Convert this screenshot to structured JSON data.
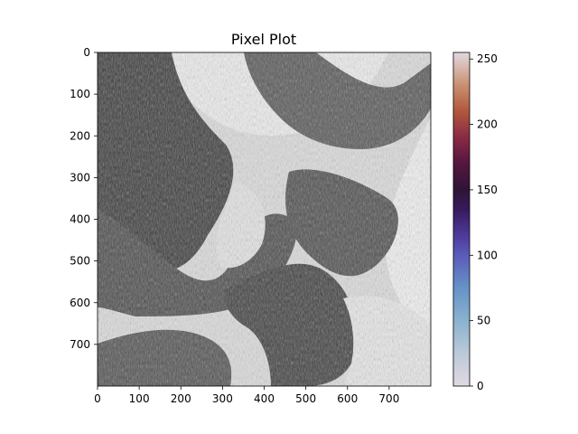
{
  "chart_data": {
    "type": "heatmap",
    "title": "Pixel Plot",
    "image": {
      "width": 800,
      "height": 800,
      "content": "grayscale image of flowing, folded fabric-like layers with dark moiré-textured bands over light gray/white background"
    },
    "x_axis": {
      "range": [
        0,
        800
      ],
      "ticks": [
        0,
        100,
        200,
        300,
        400,
        500,
        600,
        700
      ],
      "tick_labels": [
        "0",
        "100",
        "200",
        "300",
        "400",
        "500",
        "600",
        "700"
      ]
    },
    "y_axis": {
      "range": [
        0,
        800
      ],
      "inverted": true,
      "ticks": [
        0,
        100,
        200,
        300,
        400,
        500,
        600,
        700
      ],
      "tick_labels": [
        "0",
        "100",
        "200",
        "300",
        "400",
        "500",
        "600",
        "700"
      ]
    },
    "colorbar": {
      "range": [
        0,
        255
      ],
      "ticks": [
        0,
        50,
        100,
        150,
        200,
        250
      ],
      "tick_labels": [
        "0",
        "50",
        "100",
        "150",
        "200",
        "250"
      ],
      "colormap": "twilight",
      "stops": [
        {
          "value": 0,
          "color": "#e2d9e2"
        },
        {
          "value": 25,
          "color": "#bcc9d9"
        },
        {
          "value": 50,
          "color": "#8ab2cf"
        },
        {
          "value": 75,
          "color": "#6693c8"
        },
        {
          "value": 100,
          "color": "#5a5bb8"
        },
        {
          "value": 115,
          "color": "#4e3a9b"
        },
        {
          "value": 135,
          "color": "#371a5d"
        },
        {
          "value": 150,
          "color": "#2f1436"
        },
        {
          "value": 170,
          "color": "#54163e"
        },
        {
          "value": 190,
          "color": "#8a2a44"
        },
        {
          "value": 210,
          "color": "#b2573a"
        },
        {
          "value": 230,
          "color": "#c99071"
        },
        {
          "value": 255,
          "color": "#e2d9e2"
        }
      ]
    }
  }
}
